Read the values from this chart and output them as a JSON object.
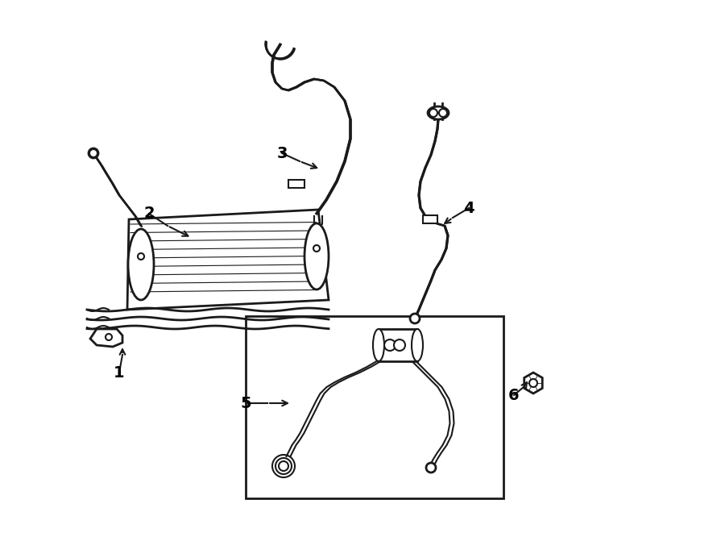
{
  "bg_color": "#ffffff",
  "line_color": "#1a1a1a",
  "line_width": 1.5,
  "label_fontsize": 14,
  "labels": [
    "1",
    "2",
    "3",
    "4",
    "5",
    "6"
  ]
}
